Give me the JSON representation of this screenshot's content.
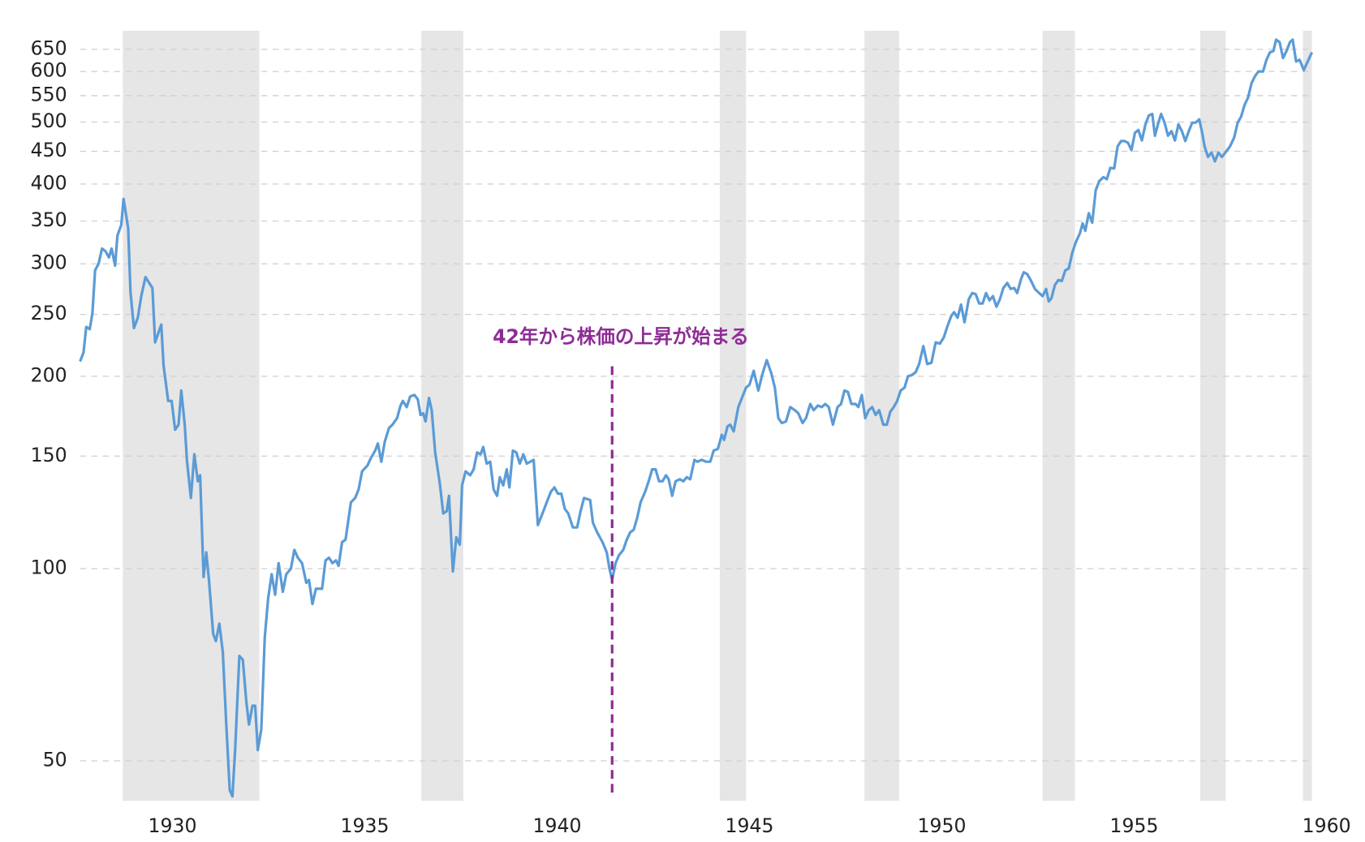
{
  "chart_data": {
    "type": "line",
    "color": "#5b9bd6",
    "band_color": "#e6e6e6",
    "log_y": true,
    "grid": true,
    "xlim": [
      1927.6,
      1959.62
    ],
    "ylim": [
      43.3,
      695
    ],
    "xticks": [
      1930,
      1935,
      1940,
      1945,
      1950,
      1955,
      1960
    ],
    "yticks": [
      50,
      100,
      150,
      200,
      250,
      300,
      350,
      400,
      450,
      500,
      550,
      600,
      650
    ],
    "shaded_ranges": [
      [
        1928.71,
        1932.26
      ],
      [
        1936.47,
        1937.56
      ],
      [
        1944.23,
        1944.91
      ],
      [
        1947.99,
        1948.89
      ],
      [
        1952.62,
        1953.46
      ],
      [
        1956.72,
        1957.38
      ],
      [
        1959.39,
        1959.62
      ]
    ],
    "annotation": {
      "text": "42年から株価の上昇が始まる",
      "x": 1941.43,
      "yrange": [
        44.6,
        209
      ],
      "color": "#8e2c96"
    },
    "x": [
      1927.6,
      1927.69,
      1927.76,
      1927.85,
      1927.92,
      1927.99,
      1928.08,
      1928.17,
      1928.26,
      1928.35,
      1928.42,
      1928.51,
      1928.57,
      1928.67,
      1928.73,
      1928.85,
      1928.91,
      1929.0,
      1929.1,
      1929.19,
      1929.3,
      1929.48,
      1929.55,
      1929.71,
      1929.77,
      1929.89,
      1929.98,
      1930.07,
      1930.16,
      1930.23,
      1930.32,
      1930.38,
      1930.48,
      1930.57,
      1930.66,
      1930.72,
      1930.81,
      1930.88,
      1930.95,
      1931.06,
      1931.13,
      1931.22,
      1931.31,
      1931.4,
      1931.49,
      1931.56,
      1931.63,
      1931.74,
      1931.83,
      1931.92,
      1931.99,
      1932.08,
      1932.15,
      1932.22,
      1932.31,
      1932.4,
      1932.49,
      1932.58,
      1932.67,
      1932.76,
      1932.87,
      1932.96,
      1933.08,
      1933.17,
      1933.26,
      1933.37,
      1933.48,
      1933.55,
      1933.64,
      1933.73,
      1933.89,
      1933.98,
      1934.07,
      1934.16,
      1934.25,
      1934.32,
      1934.41,
      1934.5,
      1934.64,
      1934.75,
      1934.84,
      1934.93,
      1935.07,
      1935.16,
      1935.27,
      1935.34,
      1935.43,
      1935.52,
      1935.63,
      1935.72,
      1935.84,
      1935.93,
      1935.99,
      1936.09,
      1936.18,
      1936.29,
      1936.38,
      1936.45,
      1936.52,
      1936.58,
      1936.67,
      1936.74,
      1936.83,
      1936.95,
      1937.04,
      1937.13,
      1937.19,
      1937.29,
      1937.38,
      1937.47,
      1937.53,
      1937.62,
      1937.74,
      1937.83,
      1937.92,
      1938.01,
      1938.08,
      1938.17,
      1938.26,
      1938.35,
      1938.44,
      1938.51,
      1938.6,
      1938.69,
      1938.76,
      1938.85,
      1938.94,
      1939.03,
      1939.12,
      1939.21,
      1939.39,
      1939.5,
      1939.62,
      1939.73,
      1939.84,
      1939.93,
      1940.02,
      1940.11,
      1940.2,
      1940.29,
      1940.41,
      1940.52,
      1940.61,
      1940.7,
      1940.86,
      1940.93,
      1941.04,
      1941.18,
      1941.29,
      1941.36,
      1941.43,
      1941.52,
      1941.61,
      1941.72,
      1941.81,
      1941.9,
      1941.99,
      1942.08,
      1942.17,
      1942.29,
      1942.38,
      1942.47,
      1942.56,
      1942.65,
      1942.74,
      1942.83,
      1942.9,
      1942.99,
      1943.08,
      1943.19,
      1943.28,
      1943.37,
      1943.46,
      1943.57,
      1943.64,
      1943.76,
      1943.87,
      1943.98,
      1944.07,
      1944.18,
      1944.28,
      1944.34,
      1944.43,
      1944.5,
      1944.59,
      1944.71,
      1944.82,
      1944.91,
      1945.0,
      1945.11,
      1945.23,
      1945.34,
      1945.45,
      1945.57,
      1945.66,
      1945.75,
      1945.84,
      1945.95,
      1946.06,
      1946.18,
      1946.27,
      1946.38,
      1946.47,
      1946.58,
      1946.67,
      1946.78,
      1946.88,
      1946.97,
      1947.06,
      1947.17,
      1947.29,
      1947.38,
      1947.47,
      1947.56,
      1947.65,
      1947.76,
      1947.83,
      1947.92,
      1948.01,
      1948.1,
      1948.19,
      1948.28,
      1948.37,
      1948.48,
      1948.57,
      1948.66,
      1948.75,
      1948.84,
      1948.93,
      1949.03,
      1949.12,
      1949.23,
      1949.32,
      1949.41,
      1949.52,
      1949.62,
      1949.73,
      1949.84,
      1949.95,
      1950.05,
      1950.14,
      1950.25,
      1950.32,
      1950.41,
      1950.5,
      1950.59,
      1950.7,
      1950.79,
      1950.88,
      1950.97,
      1951.06,
      1951.15,
      1951.24,
      1951.33,
      1951.42,
      1951.51,
      1951.6,
      1951.7,
      1951.79,
      1951.88,
      1951.96,
      1952.06,
      1952.13,
      1952.22,
      1952.31,
      1952.42,
      1952.53,
      1952.62,
      1952.71,
      1952.78,
      1952.85,
      1952.94,
      1953.03,
      1953.12,
      1953.21,
      1953.3,
      1953.39,
      1953.48,
      1953.59,
      1953.66,
      1953.73,
      1953.82,
      1953.91,
      1954.0,
      1954.09,
      1954.2,
      1954.29,
      1954.38,
      1954.48,
      1954.57,
      1954.66,
      1954.75,
      1954.84,
      1954.93,
      1955.02,
      1955.11,
      1955.2,
      1955.29,
      1955.38,
      1955.47,
      1955.54,
      1955.63,
      1955.7,
      1955.79,
      1955.88,
      1955.97,
      1956.06,
      1956.15,
      1956.24,
      1956.33,
      1956.42,
      1956.51,
      1956.6,
      1956.69,
      1956.76,
      1956.83,
      1956.92,
      1957.01,
      1957.1,
      1957.19,
      1957.28,
      1957.37,
      1957.49,
      1957.6,
      1957.69,
      1957.78,
      1957.87,
      1957.96,
      1958.05,
      1958.14,
      1958.23,
      1958.35,
      1958.44,
      1958.53,
      1958.62,
      1958.69,
      1958.78,
      1958.87,
      1958.96,
      1959.05,
      1959.12,
      1959.21,
      1959.3,
      1959.41,
      1959.5,
      1959.62
    ],
    "values": [
      211,
      218,
      239,
      237,
      251,
      293,
      300,
      317,
      314,
      307,
      317,
      298,
      332,
      345,
      379,
      341,
      271,
      238,
      247,
      267,
      286,
      275,
      226,
      241,
      208,
      183,
      183,
      165,
      168,
      190,
      168,
      147,
      129,
      151,
      137,
      140,
      97,
      106,
      96,
      79,
      77,
      82,
      74,
      57,
      45,
      44,
      52,
      73,
      72,
      62,
      57,
      61,
      61,
      52,
      56,
      78,
      90,
      98,
      91,
      102,
      92,
      98,
      100,
      107,
      104,
      102,
      95,
      96,
      88,
      93,
      93,
      103,
      104,
      102,
      103,
      101,
      110,
      111,
      127,
      129,
      133,
      142,
      145,
      149,
      153,
      157,
      147,
      158,
      166,
      168,
      172,
      180,
      183,
      179,
      186,
      187,
      184,
      174,
      175,
      170,
      185,
      177,
      152,
      136,
      122,
      123,
      130,
      99,
      112,
      109,
      135,
      142,
      140,
      143,
      152,
      151,
      155,
      146,
      147,
      133,
      130,
      139,
      135,
      143,
      134,
      153,
      152,
      146,
      151,
      146,
      148,
      117,
      122,
      127,
      132,
      134,
      131,
      131,
      124,
      122,
      116,
      116,
      123,
      129,
      128,
      118,
      114,
      110,
      106,
      100,
      96,
      102,
      105,
      107,
      111,
      114,
      115,
      120,
      127,
      132,
      137,
      143,
      143,
      137,
      137,
      140,
      138,
      130,
      137,
      138,
      137,
      139,
      138,
      148,
      147,
      148,
      147,
      147,
      153,
      154,
      162,
      159,
      167,
      168,
      164,
      179,
      186,
      192,
      194,
      204,
      190,
      202,
      212,
      202,
      192,
      172,
      169,
      170,
      179,
      177,
      175,
      169,
      172,
      181,
      177,
      180,
      179,
      181,
      179,
      168,
      179,
      181,
      190,
      189,
      181,
      181,
      179,
      187,
      172,
      177,
      179,
      174,
      177,
      168,
      168,
      176,
      179,
      183,
      190,
      192,
      200,
      201,
      203,
      209,
      223,
      209,
      210,
      226,
      225,
      230,
      239,
      249,
      252,
      247,
      259,
      243,
      264,
      270,
      269,
      260,
      260,
      270,
      263,
      267,
      257,
      264,
      275,
      280,
      274,
      275,
      270,
      284,
      291,
      289,
      283,
      274,
      270,
      267,
      274,
      262,
      265,
      278,
      283,
      282,
      293,
      295,
      312,
      324,
      335,
      347,
      338,
      360,
      348,
      391,
      404,
      410,
      407,
      424,
      423,
      458,
      467,
      467,
      464,
      452,
      481,
      486,
      468,
      495,
      512,
      515,
      476,
      499,
      515,
      499,
      476,
      484,
      468,
      496,
      484,
      467,
      484,
      499,
      499,
      505,
      484,
      458,
      441,
      448,
      434,
      448,
      441,
      448,
      458,
      473,
      499,
      510,
      532,
      546,
      575,
      590,
      600,
      600,
      626,
      643,
      646,
      673,
      667,
      630,
      646,
      667,
      673,
      622,
      626,
      603,
      620,
      643
    ]
  }
}
